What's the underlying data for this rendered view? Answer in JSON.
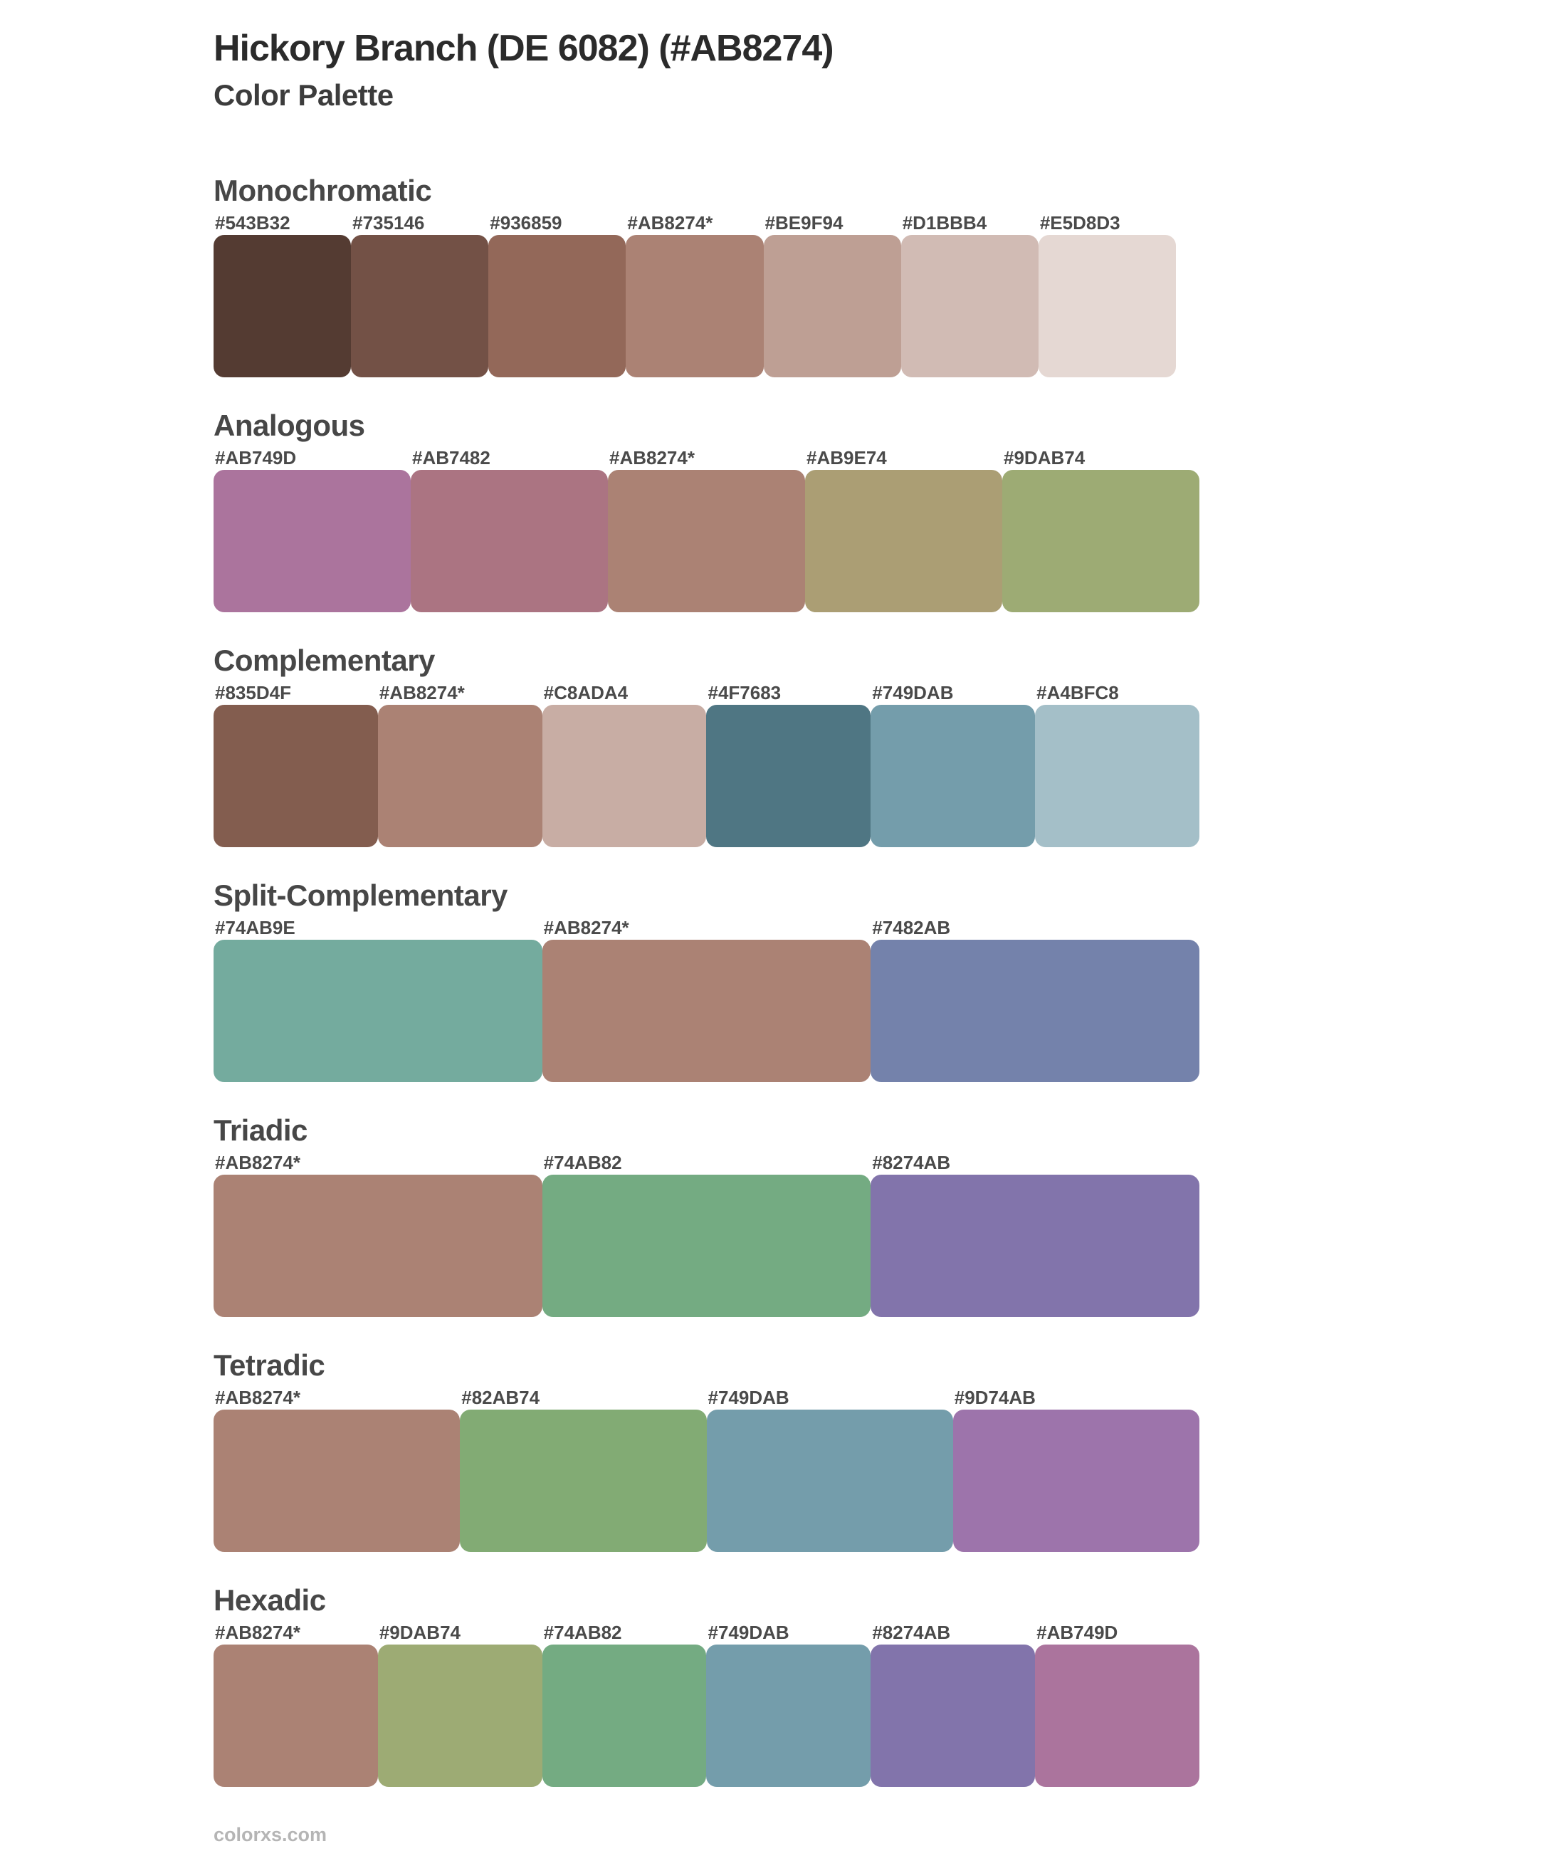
{
  "page": {
    "title": "Hickory Branch (DE 6082) (#AB8274)",
    "subtitle": "Color Palette",
    "base_color_hex": "#AB8274",
    "footer_link": "colorxs.com"
  },
  "sections": [
    {
      "name": "Monochromatic",
      "swatches": [
        {
          "label": "#543B32",
          "color": "#543B32"
        },
        {
          "label": "#735146",
          "color": "#735146"
        },
        {
          "label": "#936859",
          "color": "#936859"
        },
        {
          "label": "#AB8274*",
          "color": "#AB8274"
        },
        {
          "label": "#BE9F94",
          "color": "#BE9F94"
        },
        {
          "label": "#D1BBB4",
          "color": "#D1BBB4"
        },
        {
          "label": "#E5D8D3",
          "color": "#E5D8D3"
        }
      ]
    },
    {
      "name": "Analogous",
      "swatches": [
        {
          "label": "#AB749D",
          "color": "#AB749D"
        },
        {
          "label": "#AB7482",
          "color": "#AB7482"
        },
        {
          "label": "#AB8274*",
          "color": "#AB8274"
        },
        {
          "label": "#AB9E74",
          "color": "#AB9E74"
        },
        {
          "label": "#9DAB74",
          "color": "#9DAB74"
        }
      ]
    },
    {
      "name": "Complementary",
      "swatches": [
        {
          "label": "#835D4F",
          "color": "#835D4F"
        },
        {
          "label": "#AB8274*",
          "color": "#AB8274"
        },
        {
          "label": "#C8ADA4",
          "color": "#C8ADA4"
        },
        {
          "label": "#4F7683",
          "color": "#4F7683"
        },
        {
          "label": "#749DAB",
          "color": "#749DAB"
        },
        {
          "label": "#A4BFC8",
          "color": "#A4BFC8"
        }
      ]
    },
    {
      "name": "Split-Complementary",
      "swatches": [
        {
          "label": "#74AB9E",
          "color": "#74AB9E"
        },
        {
          "label": "#AB8274*",
          "color": "#AB8274"
        },
        {
          "label": "#7482AB",
          "color": "#7482AB"
        }
      ]
    },
    {
      "name": "Triadic",
      "swatches": [
        {
          "label": "#AB8274*",
          "color": "#AB8274"
        },
        {
          "label": "#74AB82",
          "color": "#74AB82"
        },
        {
          "label": "#8274AB",
          "color": "#8274AB"
        }
      ]
    },
    {
      "name": "Tetradic",
      "swatches": [
        {
          "label": "#AB8274*",
          "color": "#AB8274"
        },
        {
          "label": "#82AB74",
          "color": "#82AB74"
        },
        {
          "label": "#749DAB",
          "color": "#749DAB"
        },
        {
          "label": "#9D74AB",
          "color": "#9D74AB"
        }
      ]
    },
    {
      "name": "Hexadic",
      "swatches": [
        {
          "label": "#AB8274*",
          "color": "#AB8274"
        },
        {
          "label": "#9DAB74",
          "color": "#9DAB74"
        },
        {
          "label": "#74AB82",
          "color": "#74AB82"
        },
        {
          "label": "#749DAB",
          "color": "#749DAB"
        },
        {
          "label": "#8274AB",
          "color": "#8274AB"
        },
        {
          "label": "#AB749D",
          "color": "#AB749D"
        }
      ]
    }
  ]
}
